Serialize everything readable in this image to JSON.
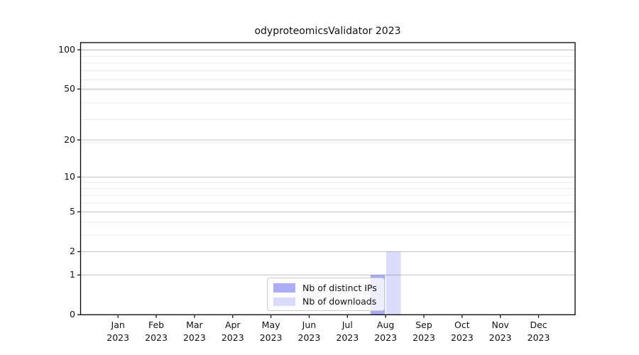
{
  "chart_data": {
    "type": "bar",
    "title": "odyproteomicsValidator 2023",
    "x_categories": [
      "Jan",
      "Feb",
      "Mar",
      "Apr",
      "May",
      "Jun",
      "Jul",
      "Aug",
      "Sep",
      "Oct",
      "Nov",
      "Dec"
    ],
    "x_year_label": "2023",
    "series": [
      {
        "name": "Nb of distinct IPs",
        "color": "rgba(0,0,230,0.33)",
        "values": [
          0,
          0,
          0,
          0,
          0,
          0,
          0,
          1,
          0,
          0,
          0,
          0
        ]
      },
      {
        "name": "Nb of downloads",
        "color": "rgba(0,0,230,0.14)",
        "values": [
          0,
          0,
          0,
          0,
          0,
          0,
          0,
          2,
          0,
          0,
          0,
          0
        ]
      }
    ],
    "y_axis": {
      "scale": "log10(value+1)",
      "major_ticks": [
        0,
        1,
        2,
        5,
        10,
        20,
        50,
        100
      ],
      "minor_ticks": [
        3,
        4,
        6,
        7,
        8,
        9,
        19,
        29,
        39,
        49,
        59,
        69,
        79,
        89,
        99
      ],
      "range": [
        0,
        113
      ]
    },
    "grid": {
      "orientation": "horizontal",
      "major_color": "#c2c2c2",
      "minor_color": "#e9e9e9"
    },
    "legend": {
      "position": "inside-bottom-center",
      "items": [
        "Nb of distinct IPs",
        "Nb of downloads"
      ]
    }
  },
  "colors": {
    "background": "#ffffff",
    "spine": "#000000",
    "text": "#111111",
    "legend_border": "#cccccc"
  }
}
